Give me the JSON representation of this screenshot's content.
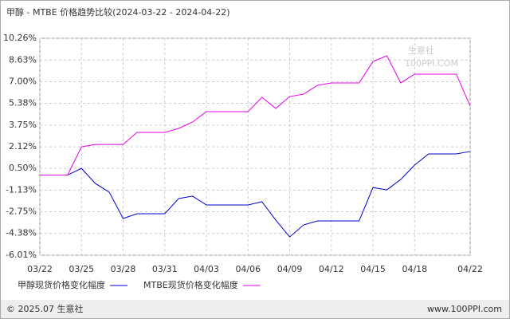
{
  "chart_data": {
    "type": "line",
    "title": "甲醇 - MTBE 价格趋势比较(2024-03-22 - 2024-04-22)",
    "categories": [
      "03/22",
      null,
      null,
      "03/25",
      null,
      null,
      "03/28",
      null,
      null,
      "03/31",
      null,
      null,
      "04/03",
      null,
      null,
      "04/06",
      null,
      null,
      "04/09",
      null,
      null,
      "04/12",
      null,
      null,
      "04/15",
      null,
      null,
      "04/18",
      null,
      null,
      null,
      "04/22"
    ],
    "series": [
      {
        "name": "甲醇现货价格变化幅度",
        "color": "#0000cc",
        "values": [
          0,
          0,
          0,
          0.5,
          -0.63,
          -1.28,
          -3.26,
          -2.9,
          -2.9,
          -2.9,
          -1.76,
          -1.58,
          -2.24,
          -2.24,
          -2.24,
          -2.24,
          -2.0,
          -3.38,
          -4.64,
          -3.74,
          -3.44,
          -3.44,
          -3.44,
          -3.44,
          -0.93,
          -1.11,
          -0.33,
          0.75,
          1.59,
          1.59,
          1.59,
          1.77
        ]
      },
      {
        "name": "MTBE现货价格变化幅度",
        "color": "#e600e6",
        "values": [
          0,
          0,
          0,
          2.12,
          2.3,
          2.3,
          2.3,
          3.2,
          3.2,
          3.2,
          3.5,
          3.98,
          4.76,
          4.76,
          4.76,
          4.76,
          5.83,
          5.0,
          5.89,
          6.07,
          6.73,
          6.91,
          6.91,
          6.91,
          8.52,
          8.94,
          6.91,
          7.57,
          7.57,
          7.57,
          7.57,
          5.18
        ]
      }
    ],
    "ylim": [
      -6.01,
      10.26
    ],
    "yticks": [
      {
        "value": 10.26,
        "label": "10.26%"
      },
      {
        "value": 8.63,
        "label": "8.63%"
      },
      {
        "value": 7.0,
        "label": "7.00%"
      },
      {
        "value": 5.38,
        "label": "5.38%"
      },
      {
        "value": 3.75,
        "label": "3.75%"
      },
      {
        "value": 2.12,
        "label": "2.12%"
      },
      {
        "value": 0.5,
        "label": "0.50%"
      },
      {
        "value": -1.13,
        "label": "-1.13%"
      },
      {
        "value": -2.75,
        "label": "-2.75%"
      },
      {
        "value": -4.38,
        "label": "-4.38%"
      },
      {
        "value": -6.01,
        "label": "-6.01%"
      }
    ],
    "grid": true,
    "watermark": "生意社",
    "watermark_sub": "100PPI.COM",
    "footer_left": "© 2025.07 生意社",
    "footer_right": "www.100PPI.com"
  }
}
